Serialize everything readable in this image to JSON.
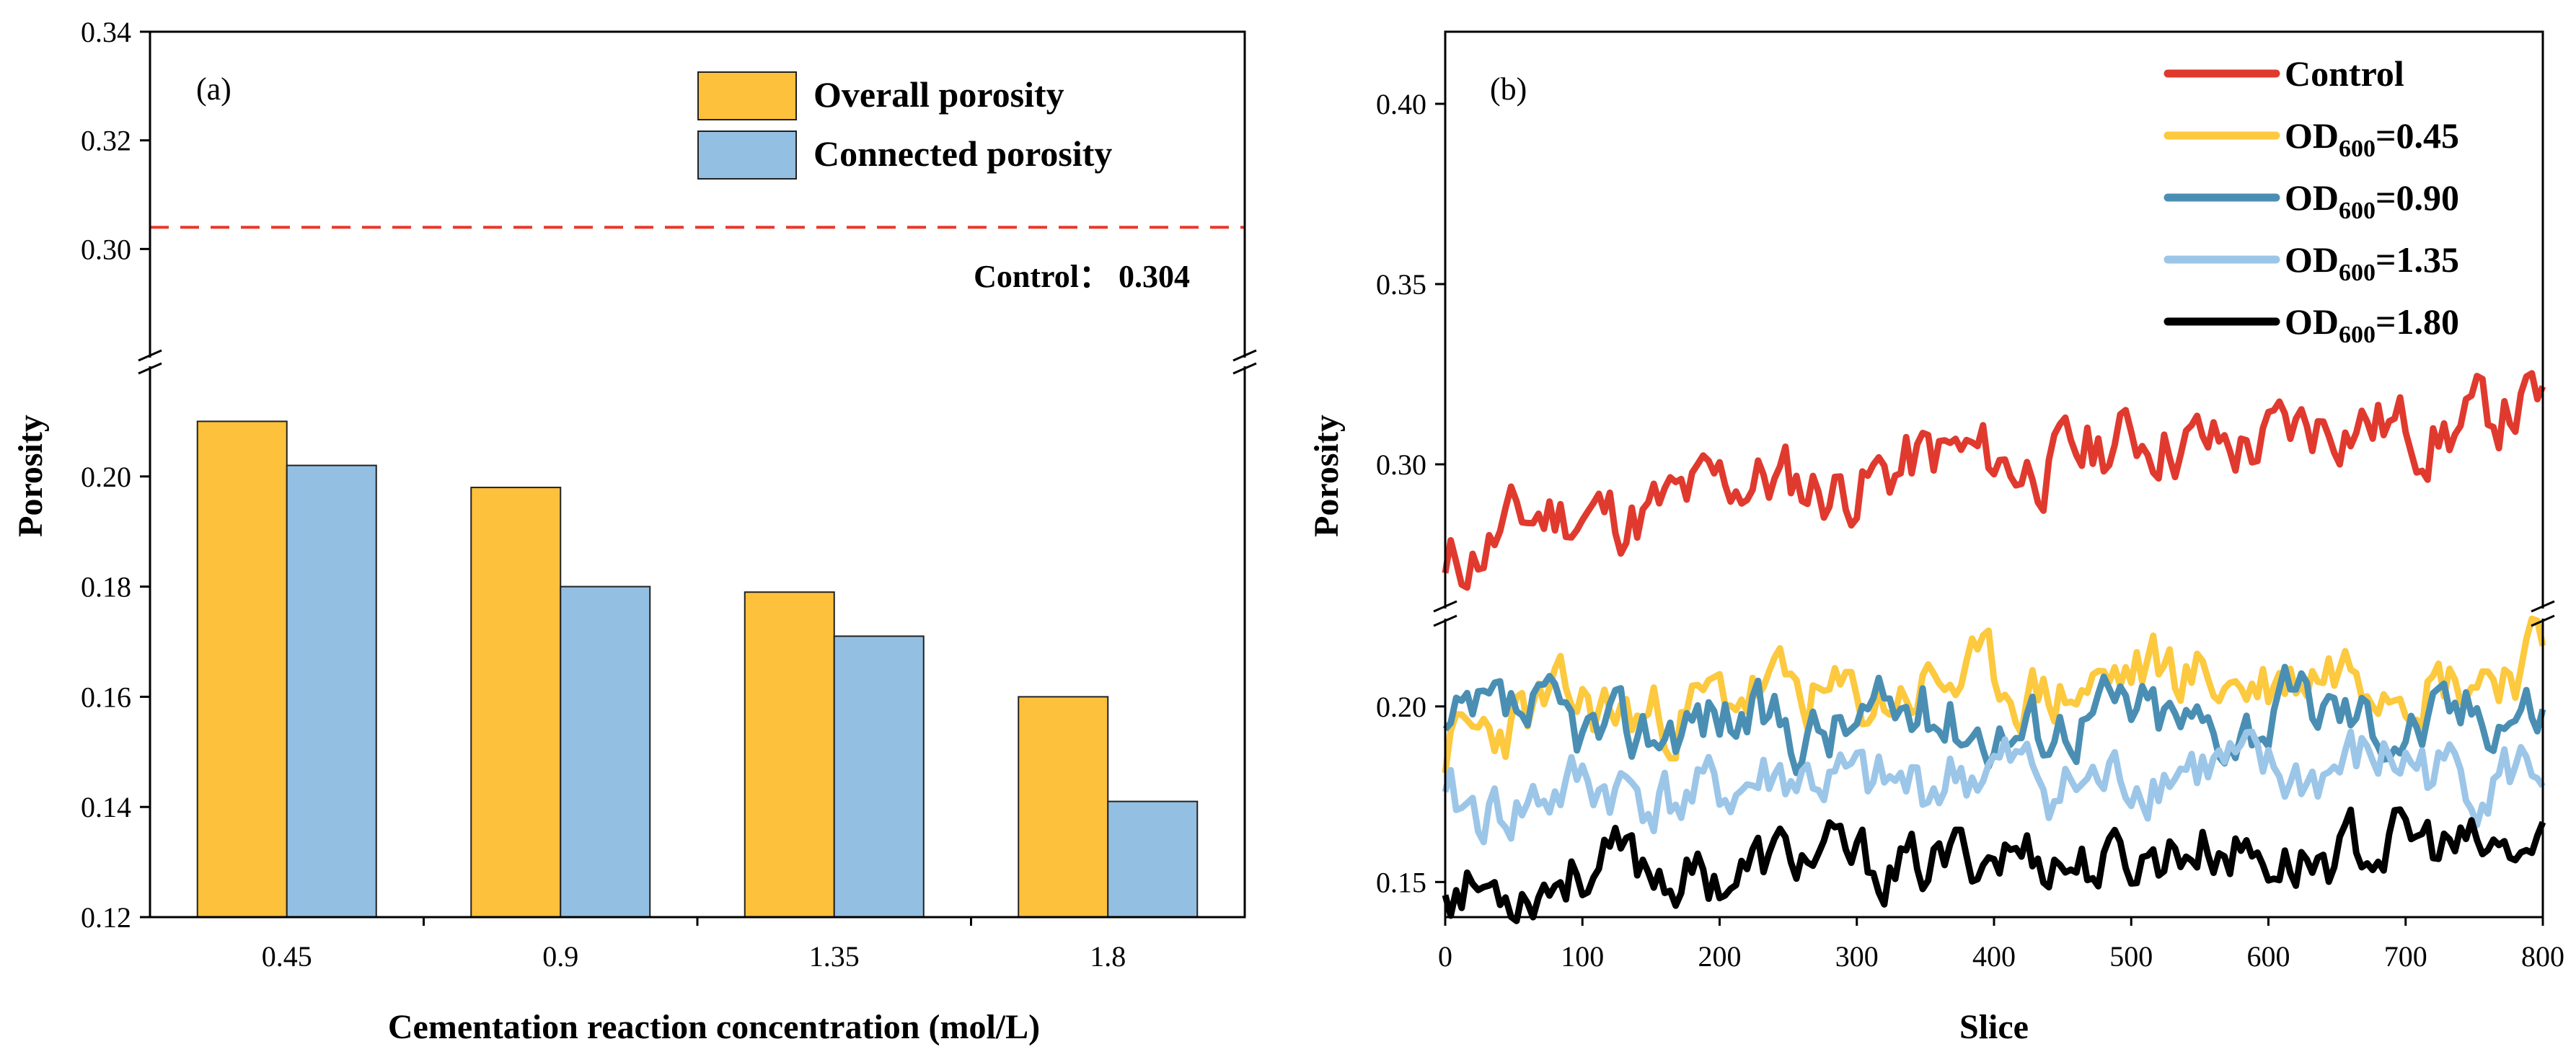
{
  "chart_data": [
    {
      "type": "bar",
      "panel_label": "(a)",
      "xlabel": "Cementation reaction concentration (mol/L)",
      "ylabel": "Porosity",
      "categories": [
        "0.45",
        "0.9",
        "1.35",
        "1.8"
      ],
      "series": [
        {
          "name": "Overall porosity",
          "color": "#FDC13C",
          "values": [
            0.21,
            0.198,
            0.179,
            0.16
          ]
        },
        {
          "name": "Connected porosity",
          "color": "#93BFE2",
          "values": [
            0.202,
            0.18,
            0.171,
            0.141
          ]
        }
      ],
      "y_break": true,
      "ylim_lower": [
        0.12,
        0.22
      ],
      "ylim_upper": [
        0.28,
        0.34
      ],
      "yticks_lower": [
        "0.12",
        "0.14",
        "0.16",
        "0.18",
        "0.20"
      ],
      "yticks_upper": [
        "0.30",
        "0.32",
        "0.34"
      ],
      "control_line": {
        "value": 0.304,
        "label": "Control： 0.304",
        "color": "#E8392B",
        "style": "dashed"
      },
      "legend_position": "top-right"
    },
    {
      "type": "line",
      "panel_label": "(b)",
      "xlabel": "Slice",
      "ylabel": "Porosity",
      "xlim": [
        0,
        800
      ],
      "xticks": [
        "0",
        "100",
        "200",
        "300",
        "400",
        "500",
        "600",
        "700",
        "800"
      ],
      "y_break": true,
      "ylim_lower": [
        0.14,
        0.225
      ],
      "ylim_upper": [
        0.26,
        0.42
      ],
      "yticks_lower": [
        "0.15",
        "0.20"
      ],
      "yticks_upper": [
        "0.30",
        "0.35",
        "0.40"
      ],
      "legend_position": "top-right",
      "series": [
        {
          "name": "Control",
          "sub": "",
          "suffix": "",
          "color": "#E03A2F",
          "start": 0.27,
          "end": 0.314,
          "noise": 0.008,
          "seed": 11
        },
        {
          "name": "OD",
          "sub": "600",
          "suffix": "=0.45",
          "color": "#FCC93F",
          "start": 0.19,
          "end": 0.212,
          "noise": 0.008,
          "seed": 23
        },
        {
          "name": "OD",
          "sub": "600",
          "suffix": "=0.90",
          "color": "#4A8FB3",
          "start": 0.192,
          "end": 0.198,
          "noise": 0.008,
          "seed": 37
        },
        {
          "name": "OD",
          "sub": "600",
          "suffix": "=1.35",
          "color": "#9CC6E8",
          "start": 0.17,
          "end": 0.183,
          "noise": 0.008,
          "seed": 41
        },
        {
          "name": "OD",
          "sub": "600",
          "suffix": "=1.80",
          "color": "#000000",
          "start": 0.148,
          "end": 0.16,
          "noise": 0.007,
          "seed": 53
        }
      ]
    }
  ]
}
